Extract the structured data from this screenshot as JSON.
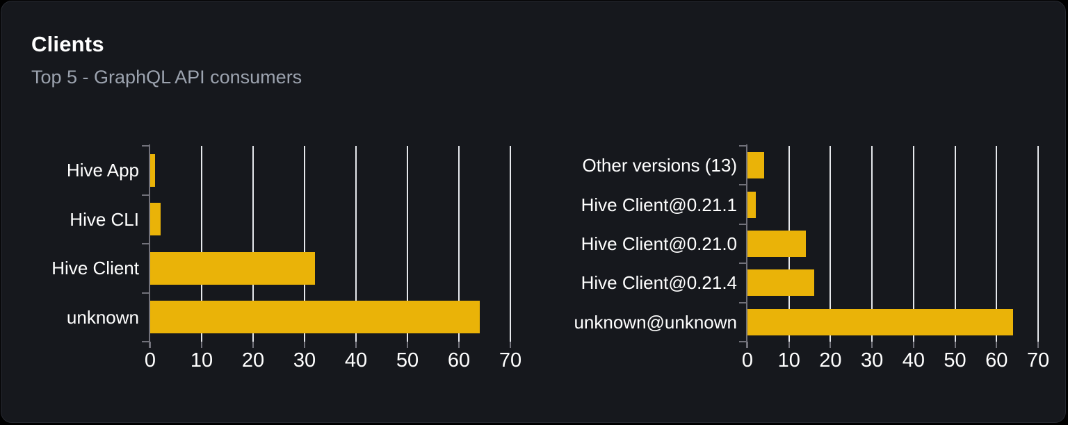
{
  "card": {
    "title": "Clients",
    "subtitle": "Top 5 - GraphQL API consumers"
  },
  "colors": {
    "bar": "#eab308",
    "card_background": "#16181d",
    "card_border": "#272a31",
    "gridline": "#e6e8ec",
    "axis": "#71717a",
    "text_primary": "#ffffff",
    "text_secondary": "#9ca3af",
    "page_background": "#000000"
  },
  "chart_data": [
    {
      "type": "bar",
      "orientation": "horizontal",
      "categories": [
        "Hive App",
        "Hive CLI",
        "Hive Client",
        "unknown"
      ],
      "values": [
        1,
        2,
        32,
        64
      ],
      "xlim": [
        0,
        70
      ],
      "xticks": [
        0,
        10,
        20,
        30,
        40,
        50,
        60,
        70
      ],
      "grid": true,
      "legend": false
    },
    {
      "type": "bar",
      "orientation": "horizontal",
      "categories": [
        "Other versions (13)",
        "Hive Client@0.21.1",
        "Hive Client@0.21.0",
        "Hive Client@0.21.4",
        "unknown@unknown"
      ],
      "values": [
        4,
        2,
        14,
        16,
        64
      ],
      "xlim": [
        0,
        70
      ],
      "xticks": [
        0,
        10,
        20,
        30,
        40,
        50,
        60,
        70
      ],
      "grid": true,
      "legend": false
    }
  ]
}
